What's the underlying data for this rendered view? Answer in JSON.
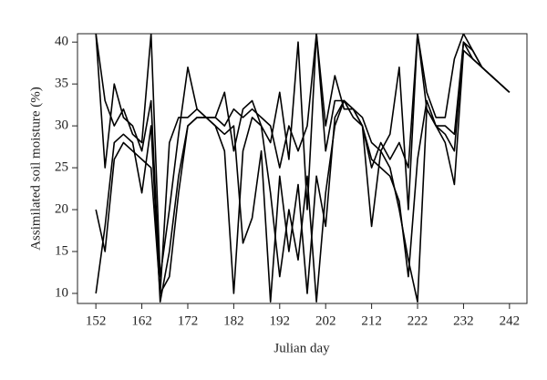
{
  "chart_data": {
    "type": "line",
    "x_label": "Julian day",
    "y_label": "Assimilated soil moisture (%)",
    "x": [
      152,
      154,
      156,
      158,
      160,
      162,
      164,
      166,
      168,
      170,
      172,
      174,
      176,
      178,
      180,
      182,
      184,
      186,
      188,
      190,
      192,
      194,
      196,
      198,
      200,
      202,
      204,
      206,
      208,
      210,
      212,
      214,
      216,
      218,
      220,
      222,
      224,
      226,
      228,
      230,
      232,
      234,
      236,
      238,
      240,
      242
    ],
    "series": [
      {
        "color": "#000000",
        "values": [
          41,
          25,
          35,
          31,
          30,
          27,
          33,
          10,
          28,
          31,
          31,
          32,
          31,
          31,
          30,
          32,
          31,
          32,
          31,
          30,
          25,
          30,
          27,
          30,
          41,
          27,
          33,
          33,
          32,
          30,
          25,
          28,
          26,
          28,
          25,
          41,
          32,
          30,
          30,
          29,
          40,
          39,
          37,
          36,
          35,
          34
        ]
      },
      {
        "color": "#000000",
        "values": [
          10,
          18,
          28,
          29,
          28,
          22,
          30,
          9,
          15,
          24,
          30,
          31,
          31,
          30,
          27,
          10,
          27,
          31,
          30,
          22,
          12,
          20,
          14,
          24,
          9,
          22,
          30,
          33,
          31,
          30,
          18,
          27,
          25,
          20,
          14,
          9,
          32,
          30,
          28,
          23,
          39,
          38,
          37,
          36,
          35,
          34
        ]
      },
      {
        "color": "#000000",
        "values": [
          41,
          33,
          30,
          32,
          29,
          28,
          41,
          12,
          20,
          29,
          37,
          32,
          31,
          31,
          34,
          27,
          32,
          33,
          30,
          28,
          34,
          26,
          40,
          20,
          41,
          30,
          36,
          32,
          32,
          31,
          28,
          27,
          29,
          37,
          20,
          41,
          34,
          31,
          31,
          38,
          41,
          39,
          37,
          36,
          35,
          34
        ]
      },
      {
        "color": "#000000",
        "values": [
          20,
          15,
          26,
          28,
          27,
          26,
          25,
          10,
          12,
          22,
          30,
          31,
          31,
          30,
          29,
          30,
          16,
          19,
          27,
          9,
          24,
          15,
          23,
          10,
          24,
          18,
          31,
          33,
          32,
          30,
          26,
          25,
          24,
          21,
          12,
          26,
          33,
          30,
          29,
          27,
          40,
          38,
          37,
          36,
          35,
          34
        ]
      }
    ],
    "xlim": [
      148,
      245.8
    ],
    "ylim": [
      8.8,
      41
    ],
    "xticks": [
      152,
      162,
      172,
      182,
      192,
      202,
      212,
      222,
      232,
      242
    ],
    "yticks": [
      10,
      15,
      20,
      25,
      30,
      35,
      40
    ]
  }
}
